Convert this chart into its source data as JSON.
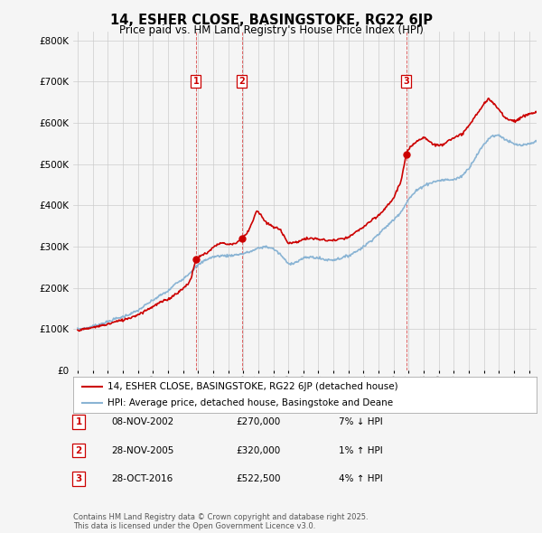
{
  "title": "14, ESHER CLOSE, BASINGSTOKE, RG22 6JP",
  "subtitle": "Price paid vs. HM Land Registry's House Price Index (HPI)",
  "ylabel_ticks": [
    "£0",
    "£100K",
    "£200K",
    "£300K",
    "£400K",
    "£500K",
    "£600K",
    "£700K",
    "£800K"
  ],
  "ytick_values": [
    0,
    100000,
    200000,
    300000,
    400000,
    500000,
    600000,
    700000,
    800000
  ],
  "ylim": [
    0,
    820000
  ],
  "xlim_start": 1994.7,
  "xlim_end": 2025.5,
  "sale_dates": [
    2002.86,
    2005.91,
    2016.83
  ],
  "sale_prices": [
    270000,
    320000,
    522500
  ],
  "sale_labels": [
    "1",
    "2",
    "3"
  ],
  "hpi_color": "#8ab4d4",
  "price_color": "#cc0000",
  "background_color": "#f5f5f5",
  "plot_bg_color": "#f5f5f5",
  "grid_color": "#cccccc",
  "legend_line1": "14, ESHER CLOSE, BASINGSTOKE, RG22 6JP (detached house)",
  "legend_line2": "HPI: Average price, detached house, Basingstoke and Deane",
  "table_rows": [
    {
      "num": "1",
      "date": "08-NOV-2002",
      "price": "£270,000",
      "hpi": "7% ↓ HPI"
    },
    {
      "num": "2",
      "date": "28-NOV-2005",
      "price": "£320,000",
      "hpi": "1% ↑ HPI"
    },
    {
      "num": "3",
      "date": "28-OCT-2016",
      "price": "£522,500",
      "hpi": "4% ↑ HPI"
    }
  ],
  "footer": "Contains HM Land Registry data © Crown copyright and database right 2025.\nThis data is licensed under the Open Government Licence v3.0.",
  "hpi_segments": [
    [
      1995.0,
      100000
    ],
    [
      1995.5,
      102000
    ],
    [
      1996.0,
      107000
    ],
    [
      1996.5,
      112000
    ],
    [
      1997.0,
      118000
    ],
    [
      1997.5,
      125000
    ],
    [
      1998.0,
      130000
    ],
    [
      1998.5,
      137000
    ],
    [
      1999.0,
      145000
    ],
    [
      1999.5,
      158000
    ],
    [
      2000.0,
      170000
    ],
    [
      2000.5,
      182000
    ],
    [
      2001.0,
      192000
    ],
    [
      2001.5,
      210000
    ],
    [
      2002.0,
      222000
    ],
    [
      2002.5,
      238000
    ],
    [
      2003.0,
      255000
    ],
    [
      2003.5,
      268000
    ],
    [
      2004.0,
      275000
    ],
    [
      2004.5,
      278000
    ],
    [
      2005.0,
      278000
    ],
    [
      2005.5,
      280000
    ],
    [
      2006.0,
      283000
    ],
    [
      2006.5,
      288000
    ],
    [
      2007.0,
      296000
    ],
    [
      2007.5,
      300000
    ],
    [
      2008.0,
      295000
    ],
    [
      2008.5,
      280000
    ],
    [
      2009.0,
      258000
    ],
    [
      2009.5,
      262000
    ],
    [
      2010.0,
      272000
    ],
    [
      2010.5,
      275000
    ],
    [
      2011.0,
      272000
    ],
    [
      2011.5,
      268000
    ],
    [
      2012.0,
      268000
    ],
    [
      2012.5,
      272000
    ],
    [
      2013.0,
      278000
    ],
    [
      2013.5,
      288000
    ],
    [
      2014.0,
      300000
    ],
    [
      2014.5,
      315000
    ],
    [
      2015.0,
      330000
    ],
    [
      2015.5,
      348000
    ],
    [
      2016.0,
      365000
    ],
    [
      2016.5,
      385000
    ],
    [
      2017.0,
      415000
    ],
    [
      2017.5,
      435000
    ],
    [
      2018.0,
      448000
    ],
    [
      2018.5,
      455000
    ],
    [
      2019.0,
      460000
    ],
    [
      2019.5,
      462000
    ],
    [
      2020.0,
      462000
    ],
    [
      2020.5,
      470000
    ],
    [
      2021.0,
      490000
    ],
    [
      2021.5,
      520000
    ],
    [
      2022.0,
      548000
    ],
    [
      2022.5,
      568000
    ],
    [
      2023.0,
      570000
    ],
    [
      2023.5,
      558000
    ],
    [
      2024.0,
      548000
    ],
    [
      2024.5,
      545000
    ],
    [
      2025.0,
      548000
    ],
    [
      2025.5,
      555000
    ]
  ],
  "price_segments": [
    [
      1995.0,
      98000
    ],
    [
      1995.5,
      100000
    ],
    [
      1996.0,
      104000
    ],
    [
      1996.5,
      108000
    ],
    [
      1997.0,
      112000
    ],
    [
      1997.5,
      118000
    ],
    [
      1998.0,
      122000
    ],
    [
      1998.5,
      128000
    ],
    [
      1999.0,
      135000
    ],
    [
      1999.5,
      145000
    ],
    [
      2000.0,
      155000
    ],
    [
      2000.5,
      165000
    ],
    [
      2001.0,
      172000
    ],
    [
      2001.5,
      185000
    ],
    [
      2002.0,
      198000
    ],
    [
      2002.5,
      218000
    ],
    [
      2002.86,
      270000
    ],
    [
      2003.2,
      278000
    ],
    [
      2003.6,
      285000
    ],
    [
      2004.0,
      298000
    ],
    [
      2004.5,
      310000
    ],
    [
      2005.0,
      305000
    ],
    [
      2005.5,
      308000
    ],
    [
      2005.91,
      320000
    ],
    [
      2006.2,
      330000
    ],
    [
      2006.5,
      350000
    ],
    [
      2006.9,
      388000
    ],
    [
      2007.2,
      375000
    ],
    [
      2007.5,
      358000
    ],
    [
      2007.8,
      352000
    ],
    [
      2008.0,
      348000
    ],
    [
      2008.5,
      340000
    ],
    [
      2009.0,
      308000
    ],
    [
      2009.5,
      310000
    ],
    [
      2010.0,
      318000
    ],
    [
      2010.5,
      320000
    ],
    [
      2011.0,
      318000
    ],
    [
      2011.5,
      315000
    ],
    [
      2012.0,
      315000
    ],
    [
      2012.5,
      318000
    ],
    [
      2013.0,
      322000
    ],
    [
      2013.5,
      335000
    ],
    [
      2014.0,
      348000
    ],
    [
      2014.5,
      362000
    ],
    [
      2015.0,
      375000
    ],
    [
      2015.5,
      395000
    ],
    [
      2016.0,
      418000
    ],
    [
      2016.5,
      460000
    ],
    [
      2016.83,
      522500
    ],
    [
      2017.0,
      535000
    ],
    [
      2017.3,
      548000
    ],
    [
      2017.6,
      558000
    ],
    [
      2018.0,
      565000
    ],
    [
      2018.3,
      558000
    ],
    [
      2018.6,
      548000
    ],
    [
      2019.0,
      545000
    ],
    [
      2019.3,
      548000
    ],
    [
      2019.6,
      558000
    ],
    [
      2020.0,
      562000
    ],
    [
      2020.5,
      572000
    ],
    [
      2021.0,
      592000
    ],
    [
      2021.5,
      620000
    ],
    [
      2022.0,
      645000
    ],
    [
      2022.3,
      658000
    ],
    [
      2022.6,
      648000
    ],
    [
      2023.0,
      632000
    ],
    [
      2023.3,
      618000
    ],
    [
      2023.6,
      608000
    ],
    [
      2024.0,
      605000
    ],
    [
      2024.3,
      608000
    ],
    [
      2024.6,
      615000
    ],
    [
      2025.0,
      622000
    ],
    [
      2025.5,
      625000
    ]
  ]
}
